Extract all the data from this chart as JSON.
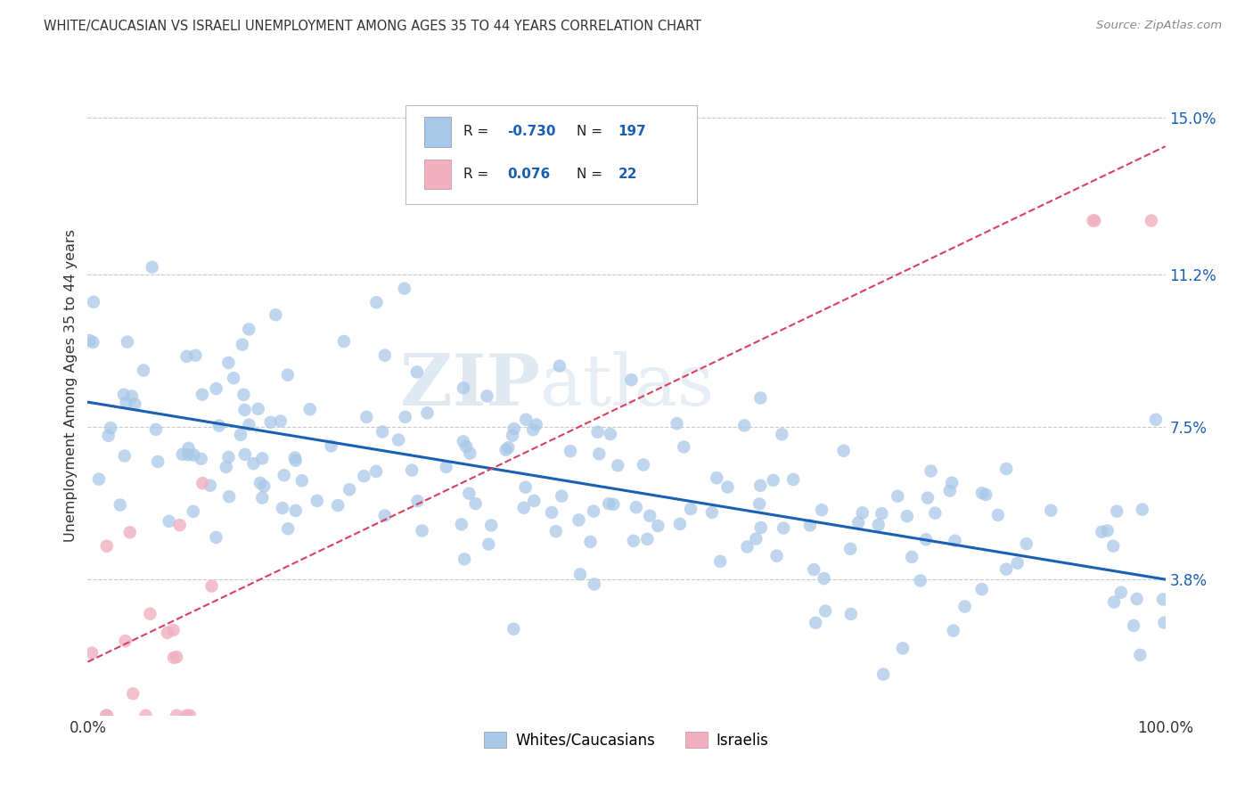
{
  "title": "WHITE/CAUCASIAN VS ISRAELI UNEMPLOYMENT AMONG AGES 35 TO 44 YEARS CORRELATION CHART",
  "source": "Source: ZipAtlas.com",
  "ylabel": "Unemployment Among Ages 35 to 44 years",
  "ytick_values": [
    3.8,
    7.5,
    11.2,
    15.0
  ],
  "xlim": [
    0,
    100
  ],
  "ylim": [
    0.5,
    16.5
  ],
  "blue_R": "-0.730",
  "blue_N": "197",
  "pink_R": "0.076",
  "pink_N": "22",
  "blue_color": "#a8c8e8",
  "blue_line_color": "#1a5fb4",
  "pink_color": "#f0b0c0",
  "pink_line_color": "#d94060",
  "watermark_zip": "ZIP",
  "watermark_atlas": "atlas",
  "background_color": "#ffffff",
  "grid_color": "#c8c8d0",
  "blue_intercept": 8.1,
  "blue_slope": -0.043,
  "pink_intercept": 1.8,
  "pink_slope": 0.125
}
